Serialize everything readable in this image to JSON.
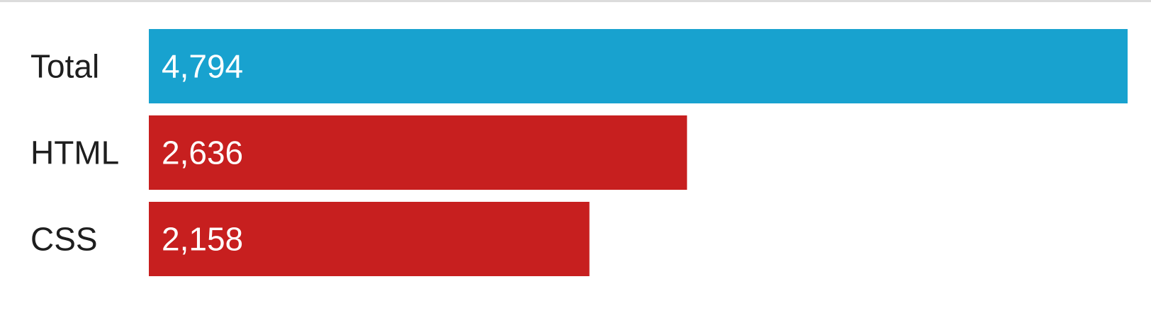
{
  "chart_data": {
    "type": "bar",
    "orientation": "horizontal",
    "categories": [
      "Total",
      "HTML",
      "CSS"
    ],
    "values": [
      4794,
      2636,
      2158
    ],
    "value_labels": [
      "4,794",
      "2,636",
      "2,158"
    ],
    "colors": [
      "#18a2cf",
      "#c71f1f",
      "#c71f1f"
    ],
    "xlim": [
      0,
      4794
    ],
    "grid": false,
    "legend": "none"
  }
}
